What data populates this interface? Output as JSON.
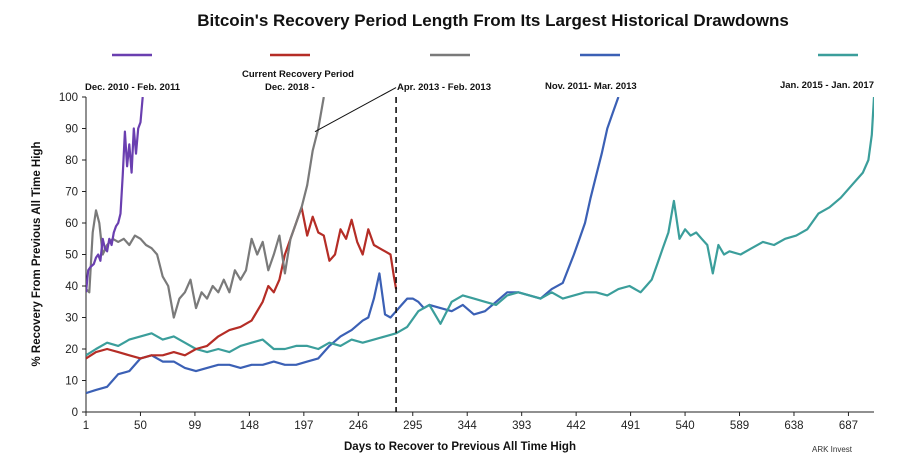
{
  "chart_data": {
    "type": "line",
    "title": "Bitcoin's Recovery Period Length From Its Largest Historical Drawdowns",
    "xlabel": "Days to Recover to Previous All Time High",
    "ylabel": "% Recovery From Previous All Time High",
    "credit": "ARK Invest",
    "xlim": [
      1,
      710
    ],
    "ylim": [
      0,
      100
    ],
    "x_ticks": [
      1,
      50,
      99,
      148,
      197,
      246,
      295,
      344,
      393,
      442,
      491,
      540,
      589,
      638,
      687
    ],
    "y_ticks": [
      0,
      10,
      20,
      30,
      40,
      50,
      60,
      70,
      80,
      90,
      100
    ],
    "marker_line": {
      "x": 280,
      "style": "dashed"
    },
    "annotation_pointer": {
      "from": [
        207,
        89
      ],
      "to": [
        280,
        103
      ]
    },
    "series": [
      {
        "name": "Dec. 2010 - Feb. 2011",
        "color": "#6a3fb0",
        "x": [
          1,
          3,
          5,
          8,
          10,
          12,
          14,
          16,
          18,
          20,
          22,
          24,
          26,
          28,
          30,
          32,
          34,
          36,
          38,
          40,
          42,
          44,
          46,
          48,
          50,
          52
        ],
        "y": [
          38,
          45,
          46,
          47,
          49,
          50,
          48,
          55,
          52,
          51,
          55,
          53,
          57,
          59,
          60,
          63,
          75,
          89,
          78,
          85,
          76,
          90,
          82,
          90,
          92,
          100
        ]
      },
      {
        "name": "Dec. 2018 -",
        "label_prefix": "Current Recovery Period",
        "color": "#b52d26",
        "x": [
          1,
          10,
          20,
          30,
          40,
          50,
          60,
          70,
          80,
          90,
          100,
          110,
          120,
          130,
          140,
          150,
          160,
          165,
          170,
          175,
          180,
          185,
          190,
          195,
          200,
          205,
          210,
          215,
          220,
          225,
          230,
          235,
          240,
          245,
          250,
          255,
          260,
          265,
          270,
          275,
          278,
          280
        ],
        "y": [
          17,
          19,
          20,
          19,
          18,
          17,
          18,
          18,
          19,
          18,
          20,
          21,
          24,
          26,
          27,
          29,
          35,
          40,
          38,
          42,
          50,
          55,
          60,
          65,
          56,
          62,
          57,
          56,
          48,
          50,
          58,
          55,
          61,
          54,
          50,
          58,
          53,
          52,
          51,
          50,
          43,
          39
        ]
      },
      {
        "name": "Apr. 2013 - Feb. 2013",
        "color": "#7a7a7a",
        "x": [
          1,
          4,
          7,
          10,
          13,
          16,
          20,
          25,
          30,
          35,
          40,
          45,
          50,
          55,
          60,
          65,
          70,
          75,
          80,
          85,
          90,
          95,
          100,
          105,
          110,
          115,
          120,
          125,
          130,
          135,
          140,
          145,
          150,
          155,
          160,
          165,
          170,
          175,
          180,
          185,
          190,
          195,
          200,
          205,
          210,
          215
        ],
        "y": [
          39,
          38,
          57,
          64,
          60,
          50,
          53,
          55,
          54,
          55,
          53,
          56,
          55,
          53,
          52,
          50,
          43,
          40,
          30,
          36,
          38,
          42,
          33,
          38,
          36,
          40,
          38,
          42,
          38,
          45,
          42,
          45,
          55,
          50,
          54,
          45,
          50,
          56,
          44,
          55,
          60,
          65,
          72,
          83,
          90,
          100
        ]
      },
      {
        "name": "Nov. 2011- Mar. 2013",
        "color": "#3b60b5",
        "x": [
          1,
          10,
          20,
          30,
          40,
          50,
          60,
          70,
          80,
          90,
          100,
          110,
          120,
          130,
          140,
          150,
          160,
          170,
          180,
          190,
          200,
          210,
          220,
          230,
          240,
          250,
          255,
          260,
          265,
          270,
          275,
          280,
          285,
          290,
          295,
          300,
          305,
          310,
          320,
          330,
          340,
          350,
          360,
          370,
          380,
          390,
          400,
          410,
          420,
          430,
          440,
          445,
          450,
          455,
          460,
          465,
          470,
          475,
          480
        ],
        "y": [
          6,
          7,
          8,
          12,
          13,
          17,
          18,
          16,
          16,
          14,
          13,
          14,
          15,
          15,
          14,
          15,
          15,
          16,
          15,
          15,
          16,
          17,
          21,
          24,
          26,
          29,
          30,
          36,
          44,
          31,
          30,
          32,
          34,
          36,
          36,
          35,
          33,
          34,
          33,
          32,
          34,
          31,
          32,
          35,
          38,
          38,
          37,
          36,
          39,
          41,
          50,
          55,
          60,
          68,
          75,
          82,
          90,
          95,
          100
        ]
      },
      {
        "name": "Jan. 2015 - Jan. 2017",
        "color": "#3b9e9b",
        "x": [
          1,
          10,
          20,
          30,
          40,
          50,
          60,
          70,
          80,
          90,
          100,
          110,
          120,
          130,
          140,
          150,
          160,
          170,
          180,
          190,
          200,
          210,
          220,
          230,
          240,
          250,
          260,
          270,
          280,
          290,
          300,
          310,
          320,
          330,
          340,
          350,
          360,
          370,
          380,
          390,
          400,
          410,
          420,
          430,
          440,
          450,
          460,
          470,
          480,
          490,
          500,
          505,
          510,
          515,
          520,
          525,
          530,
          535,
          540,
          545,
          550,
          555,
          560,
          565,
          570,
          575,
          580,
          590,
          600,
          610,
          620,
          630,
          640,
          650,
          660,
          670,
          680,
          690,
          700,
          705,
          708,
          710
        ],
        "y": [
          18,
          20,
          22,
          21,
          23,
          24,
          25,
          23,
          24,
          22,
          20,
          19,
          20,
          19,
          21,
          22,
          23,
          20,
          20,
          21,
          21,
          20,
          22,
          21,
          23,
          22,
          23,
          24,
          25,
          27,
          32,
          34,
          28,
          35,
          37,
          36,
          35,
          34,
          37,
          38,
          37,
          36,
          38,
          36,
          37,
          38,
          38,
          37,
          39,
          40,
          38,
          40,
          42,
          47,
          52,
          57,
          67,
          55,
          58,
          56,
          57,
          55,
          53,
          44,
          53,
          50,
          51,
          50,
          52,
          54,
          53,
          55,
          56,
          58,
          63,
          65,
          68,
          72,
          76,
          80,
          88,
          100
        ]
      }
    ]
  }
}
